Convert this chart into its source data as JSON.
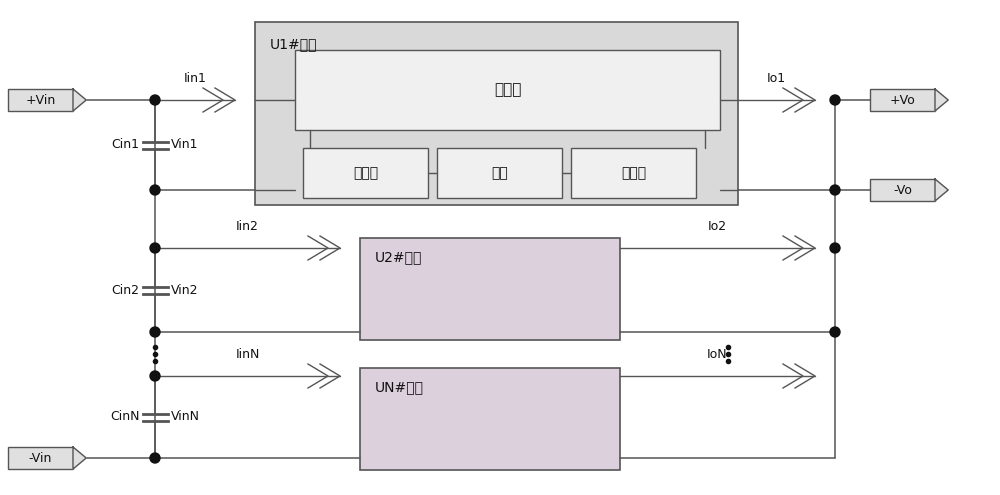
{
  "bg_color": "#ffffff",
  "line_color": "#555555",
  "box_u1_fill": "#d9d9d9",
  "box_u2_fill": "#ddd0dd",
  "box_power_fill": "#d9d9d9",
  "box_sub_fill": "#f0f0f0",
  "box_term_fill": "#e0e0e0",
  "dot_color": "#111111",
  "text_color": "#111111",
  "font_size": 10,
  "font_size_label": 9,
  "u1_label": "U1#模块",
  "u2_label": "U2#模块",
  "un_label": "UN#模块",
  "power_label": "功率级",
  "fb2_label": "反馈２",
  "opto_label": "光耦",
  "fb1_label": "反馈１",
  "vin_p": "+Vin",
  "vin_m": "-Vin",
  "vo_p": "+Vo",
  "vo_m": "-Vo",
  "iin1": "Iin1",
  "iin2": "Iin2",
  "iinn": "IinN",
  "io1": "Io1",
  "io2": "Io2",
  "ion": "IoN",
  "vin1": "Vin1",
  "vin2": "Vin2",
  "vinn": "VinN",
  "cin1": "Cin1",
  "cin2": "Cin2",
  "cinn": "CinN"
}
